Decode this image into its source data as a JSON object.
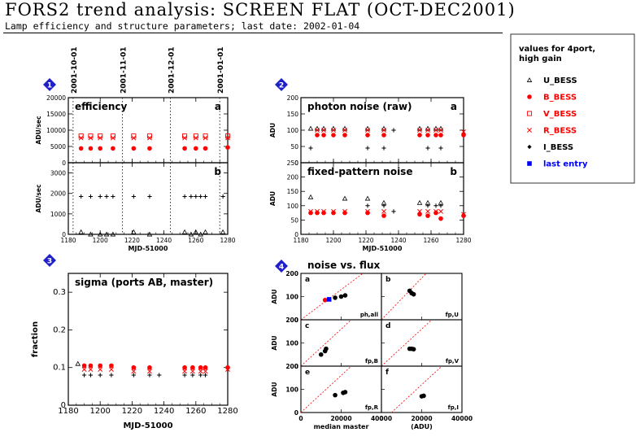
{
  "header": {
    "title": "FORS2 trend analysis: SCREEN FLAT (OCT-DEC2001)",
    "subtitle": "Lamp efficiency and structure parameters; last date: 2002-01-04"
  },
  "legend": {
    "title_lines": [
      "values for 4port,",
      "high gain"
    ],
    "items": [
      {
        "label": "U_BESS",
        "symbol": "triangle",
        "color": "#000000"
      },
      {
        "label": "B_BESS",
        "symbol": "filled-circle",
        "color": "#ff0000"
      },
      {
        "label": "V_BESS",
        "symbol": "open-square",
        "color": "#ff0000"
      },
      {
        "label": "R_BESS",
        "symbol": "cross",
        "color": "#ff0000"
      },
      {
        "label": "I_BESS",
        "symbol": "diamond",
        "color": "#000000"
      },
      {
        "label": "last entry",
        "symbol": "filled-square",
        "color": "#0000ff"
      }
    ]
  },
  "badges": [
    "1",
    "2",
    "3",
    "4"
  ],
  "chart_data": [
    {
      "id": "efficiency",
      "type": "scatter",
      "title": "efficiency",
      "panel_letter": "a",
      "xlabel": "",
      "ylabel": "ADU/sec",
      "xlim": [
        1180,
        1280
      ],
      "ylim": [
        0,
        20000
      ],
      "xticks": [
        1180,
        1200,
        1220,
        1240,
        1260,
        1280
      ],
      "yticks": [
        0,
        5000,
        10000,
        15000,
        20000
      ],
      "date_markers": [
        {
          "label": "2001-10-01",
          "x": 1183
        },
        {
          "label": "2001-11-01",
          "x": 1214
        },
        {
          "label": "2001-12-01",
          "x": 1244
        },
        {
          "label": "2001-01-01",
          "x": 1275
        }
      ],
      "x": [
        1188,
        1194,
        1200,
        1208,
        1221,
        1231,
        1253,
        1260,
        1266,
        1280
      ],
      "series": [
        {
          "name": "V_BESS",
          "symbol": "open-square",
          "color": "#ff0000",
          "values": [
            8200,
            8200,
            8200,
            8200,
            8200,
            8200,
            8200,
            8200,
            8200,
            8200
          ]
        },
        {
          "name": "R_BESS",
          "symbol": "cross",
          "color": "#ff0000",
          "values": [
            7600,
            7600,
            7600,
            7600,
            7600,
            7600,
            7600,
            7600,
            7600,
            7600
          ]
        },
        {
          "name": "B_BESS",
          "symbol": "filled-circle",
          "color": "#ff0000",
          "values": [
            4400,
            4400,
            4400,
            4400,
            4400,
            4400,
            4400,
            4400,
            4400,
            4700
          ]
        }
      ]
    },
    {
      "id": "efficiency-b",
      "type": "scatter",
      "title": "",
      "panel_letter": "b",
      "xlabel": "MJD-51000",
      "ylabel": "ADU/sec",
      "xlim": [
        1180,
        1280
      ],
      "ylim": [
        0,
        3500
      ],
      "xticks": [
        1180,
        1200,
        1220,
        1240,
        1260,
        1280
      ],
      "yticks": [
        0,
        1000,
        2000,
        3000
      ],
      "date_markers": [
        {
          "label": "2001-10-01",
          "x": 1183
        },
        {
          "label": "2001-11-01",
          "x": 1214
        },
        {
          "label": "2001-12-01",
          "x": 1244
        },
        {
          "label": "2001-01-01",
          "x": 1275
        }
      ],
      "x": [
        1188,
        1194,
        1200,
        1204,
        1208,
        1221,
        1231,
        1253,
        1257,
        1260,
        1263,
        1266,
        1277
      ],
      "series": [
        {
          "name": "I_BESS",
          "symbol": "plus",
          "color": "#000000",
          "values": [
            1850,
            1850,
            1850,
            1850,
            1850,
            1850,
            1850,
            1850,
            1850,
            1850,
            1850,
            1850,
            1850
          ]
        },
        {
          "name": "U_BESS",
          "symbol": "triangle",
          "color": "#000000",
          "values": [
            110,
            0,
            0,
            0,
            0,
            110,
            0,
            110,
            0,
            110,
            0,
            110,
            110
          ]
        }
      ]
    },
    {
      "id": "photon-noise",
      "type": "scatter",
      "title": "photon noise (raw)",
      "panel_letter": "a",
      "xlabel": "",
      "ylabel": "ADU",
      "xlim": [
        1180,
        1280
      ],
      "ylim": [
        0,
        200
      ],
      "xticks": [
        1180,
        1200,
        1220,
        1240,
        1260,
        1280
      ],
      "yticks": [
        0,
        50,
        100,
        150,
        200
      ],
      "x": [
        1186,
        1190,
        1194,
        1200,
        1207,
        1221,
        1231,
        1237,
        1253,
        1258,
        1263,
        1266,
        1280
      ],
      "series": [
        {
          "name": "U_BESS",
          "symbol": "triangle",
          "color": "#000000",
          "values": [
            105,
            105,
            105,
            105,
            105,
            105,
            105,
            null,
            105,
            105,
            105,
            105,
            null
          ]
        },
        {
          "name": "I_BESS",
          "symbol": "plus",
          "color": "#000000",
          "values": [
            45,
            null,
            null,
            null,
            null,
            45,
            45,
            100,
            null,
            45,
            null,
            45,
            null
          ]
        },
        {
          "name": "R_BESS",
          "symbol": "cross",
          "color": "#ff0000",
          "values": [
            null,
            100,
            100,
            100,
            100,
            100,
            100,
            null,
            100,
            100,
            100,
            100,
            95
          ]
        },
        {
          "name": "B_BESS",
          "symbol": "filled-circle",
          "color": "#ff0000",
          "values": [
            null,
            85,
            85,
            85,
            85,
            85,
            85,
            null,
            85,
            85,
            85,
            85,
            85
          ]
        }
      ]
    },
    {
      "id": "fixed-pattern-noise",
      "type": "scatter",
      "title": "fixed-pattern noise",
      "panel_letter": "b",
      "xlabel": "MJD-51000",
      "ylabel": "ADU",
      "xlim": [
        1180,
        1280
      ],
      "ylim": [
        0,
        250
      ],
      "xticks": [
        1180,
        1200,
        1220,
        1240,
        1260,
        1280
      ],
      "yticks": [
        0,
        50,
        100,
        150,
        200,
        250
      ],
      "x": [
        1186,
        1190,
        1194,
        1200,
        1207,
        1221,
        1231,
        1237,
        1253,
        1258,
        1263,
        1266,
        1280
      ],
      "series": [
        {
          "name": "U_BESS",
          "symbol": "triangle",
          "color": "#000000",
          "values": [
            130,
            null,
            null,
            null,
            125,
            125,
            110,
            null,
            110,
            110,
            null,
            110,
            null
          ]
        },
        {
          "name": "I_BESS",
          "symbol": "plus",
          "color": "#000000",
          "values": [
            null,
            null,
            null,
            null,
            null,
            100,
            100,
            80,
            null,
            100,
            100,
            100,
            null
          ]
        },
        {
          "name": "R_BESS",
          "symbol": "cross",
          "color": "#ff0000",
          "values": [
            80,
            80,
            80,
            80,
            80,
            80,
            80,
            null,
            80,
            80,
            80,
            80,
            70
          ]
        },
        {
          "name": "B_BESS",
          "symbol": "filled-circle",
          "color": "#ff0000",
          "values": [
            75,
            75,
            75,
            75,
            75,
            75,
            65,
            null,
            70,
            65,
            75,
            55,
            65
          ]
        }
      ]
    },
    {
      "id": "sigma",
      "type": "scatter",
      "title": "sigma (ports AB, master)",
      "panel_letter": "",
      "xlabel": "MJD-51000",
      "ylabel": "fraction",
      "xlim": [
        1180,
        1280
      ],
      "ylim": [
        0,
        0.35
      ],
      "xticks": [
        1180,
        1200,
        1220,
        1240,
        1260,
        1280
      ],
      "yticks": [
        0,
        0.1,
        0.2,
        0.3
      ],
      "x": [
        1186,
        1190,
        1194,
        1200,
        1207,
        1221,
        1231,
        1237,
        1253,
        1258,
        1263,
        1266,
        1280
      ],
      "series": [
        {
          "name": "U_BESS",
          "symbol": "triangle",
          "color": "#000000",
          "values": [
            0.11,
            null,
            null,
            null,
            null,
            null,
            null,
            null,
            null,
            null,
            null,
            null,
            null
          ]
        },
        {
          "name": "B_BESS",
          "symbol": "filled-circle",
          "color": "#ff0000",
          "values": [
            null,
            0.105,
            0.105,
            0.105,
            0.105,
            0.1,
            0.1,
            null,
            0.1,
            0.1,
            0.1,
            0.1,
            0.1
          ]
        },
        {
          "name": "R_BESS",
          "symbol": "cross",
          "color": "#ff0000",
          "values": [
            null,
            0.095,
            0.095,
            0.095,
            0.095,
            0.09,
            0.09,
            null,
            0.09,
            0.09,
            0.09,
            0.09,
            0.095
          ]
        },
        {
          "name": "I_BESS",
          "symbol": "plus",
          "color": "#000000",
          "values": [
            null,
            0.08,
            0.08,
            0.08,
            0.08,
            0.08,
            0.08,
            0.08,
            0.08,
            0.08,
            0.08,
            0.08,
            null
          ]
        }
      ]
    },
    {
      "id": "noise-vs-flux",
      "type": "scatter",
      "title": "noise vs. flux",
      "xlabel": "median master",
      "xlabel2": "(ADU)",
      "ylabel": "ADU",
      "xlim": [
        0,
        40000
      ],
      "ylim": [
        0,
        200
      ],
      "xticks": [
        0,
        20000,
        40000
      ],
      "yticks": [
        0,
        100,
        200
      ],
      "subpanels": [
        {
          "letter": "a",
          "label": "ph,all",
          "line_slope": 0.0065,
          "line_intercept": 0,
          "points": [
            {
              "x": 12000,
              "y": 85,
              "color": "#ff0000"
            },
            {
              "x": 14000,
              "y": 88,
              "color": "#0000ff"
            },
            {
              "x": 17000,
              "y": 95,
              "color": "#000000"
            },
            {
              "x": 20000,
              "y": 100,
              "color": "#000000"
            },
            {
              "x": 22000,
              "y": 105,
              "color": "#000000"
            }
          ]
        },
        {
          "letter": "b",
          "label": "fp,U",
          "line_slope": 0.009,
          "line_intercept": 0,
          "points": [
            {
              "x": 14000,
              "y": 125,
              "color": "#000000"
            },
            {
              "x": 15000,
              "y": 115,
              "color": "#000000"
            },
            {
              "x": 16000,
              "y": 110,
              "color": "#000000"
            }
          ]
        },
        {
          "letter": "c",
          "label": "fp,B",
          "line_slope": 0.008,
          "line_intercept": 0,
          "points": [
            {
              "x": 10000,
              "y": 50,
              "color": "#000000"
            },
            {
              "x": 12000,
              "y": 65,
              "color": "#000000"
            },
            {
              "x": 12500,
              "y": 75,
              "color": "#000000"
            }
          ]
        },
        {
          "letter": "d",
          "label": "fp,V",
          "line_slope": 0.008,
          "line_intercept": 0,
          "points": [
            {
              "x": 14000,
              "y": 75,
              "color": "#000000"
            },
            {
              "x": 15000,
              "y": 75,
              "color": "#000000"
            },
            {
              "x": 16000,
              "y": 73,
              "color": "#000000"
            }
          ]
        },
        {
          "letter": "e",
          "label": "fp,R",
          "line_slope": 0.008,
          "line_intercept": 0,
          "points": [
            {
              "x": 17000,
              "y": 75,
              "color": "#000000"
            },
            {
              "x": 21000,
              "y": 85,
              "color": "#000000"
            },
            {
              "x": 22000,
              "y": 88,
              "color": "#000000"
            }
          ]
        },
        {
          "letter": "f",
          "label": "fp,I",
          "line_slope": 0.008,
          "line_intercept": -40,
          "points": [
            {
              "x": 20000,
              "y": 70,
              "color": "#000000"
            },
            {
              "x": 21000,
              "y": 72,
              "color": "#000000"
            }
          ]
        }
      ]
    }
  ]
}
